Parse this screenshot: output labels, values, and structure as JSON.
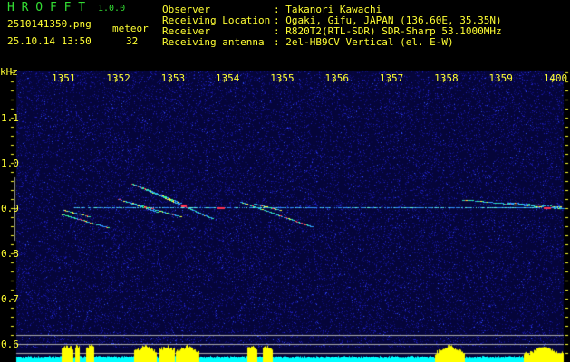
{
  "app": {
    "title": "H R O F F T",
    "version": "1.0.0"
  },
  "file": {
    "name": "2510141350.png",
    "datetime": "25.10.14 13:50"
  },
  "meteor": {
    "label": "meteor",
    "count": "32"
  },
  "info": [
    {
      "label": "Observer",
      "value": ": Takanori Kawachi"
    },
    {
      "label": "Receiving Location",
      "value": ": Ogaki, Gifu, JAPAN (136.60E, 35.35N)"
    },
    {
      "label": "Receiver",
      "value": ": R820T2(RTL-SDR) SDR-Sharp 53.1000MHz"
    },
    {
      "label": "Receiving antenna",
      "value": ": 2el-HB9CV Vertical (el. E-W)"
    }
  ],
  "axis": {
    "unit": "kHz",
    "time_labels": [
      "1351",
      "1352",
      "1353",
      "1354",
      "1355",
      "1356",
      "1357",
      "1358",
      "1359",
      "1400"
    ],
    "freq_labels": [
      "1.1",
      "1.0",
      "0.9",
      "0.8",
      "0.7",
      "0.6"
    ]
  },
  "colors": {
    "text": "#ffff33",
    "title": "#33dd33",
    "background": "#000000",
    "noise": "#0a0a60",
    "carrier": "#40c0ff",
    "level_high": "#ffff00",
    "level_low": "#00ffff"
  }
}
